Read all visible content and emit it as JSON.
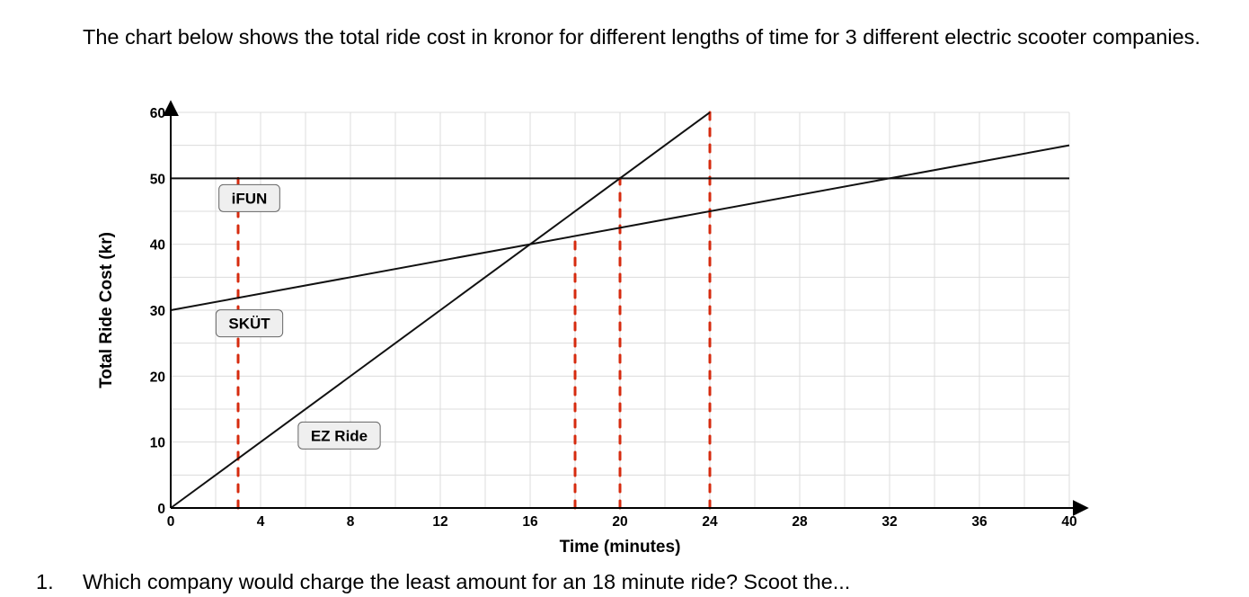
{
  "intro_text": "The chart below shows the total ride cost in kronor for different lengths of time for 3 different electric scooter companies.",
  "question": {
    "number": "1.",
    "text": "Which company would charge the least amount for an 18 minute ride? Scoot the..."
  },
  "chart_data": {
    "type": "line",
    "xlabel": "Time (minutes)",
    "ylabel": "Total Ride Cost (kr)",
    "xlim": [
      0,
      40
    ],
    "ylim": [
      0,
      60
    ],
    "x_ticks": [
      0,
      4,
      8,
      12,
      16,
      20,
      24,
      28,
      32,
      36,
      40
    ],
    "y_ticks": [
      0,
      10,
      20,
      30,
      40,
      50,
      60
    ],
    "grid": true,
    "minor_grid_step": {
      "x": 2,
      "y": 5
    },
    "series": [
      {
        "name": "iFUN",
        "x": [
          0,
          40
        ],
        "y": [
          50,
          50
        ],
        "label_at": [
          3.5,
          47
        ]
      },
      {
        "name": "SKÜT",
        "x": [
          0,
          40
        ],
        "y": [
          30,
          55
        ],
        "label_at": [
          3.5,
          28
        ]
      },
      {
        "name": "EZ Ride",
        "x": [
          0,
          24
        ],
        "y": [
          0,
          60
        ],
        "label_at": [
          7.5,
          11
        ]
      }
    ],
    "annotations": [
      {
        "type": "dashed-vertical",
        "x": 3,
        "y_from": 0,
        "y_to": 50,
        "color": "#d62b0f"
      },
      {
        "type": "dashed-vertical",
        "x": 18,
        "y_from": 0,
        "y_to": 41.25,
        "color": "#d62b0f"
      },
      {
        "type": "dashed-vertical",
        "x": 20,
        "y_from": 0,
        "y_to": 50,
        "color": "#d62b0f"
      },
      {
        "type": "dashed-vertical",
        "x": 24,
        "y_from": 0,
        "y_to": 60,
        "color": "#d62b0f"
      }
    ]
  }
}
